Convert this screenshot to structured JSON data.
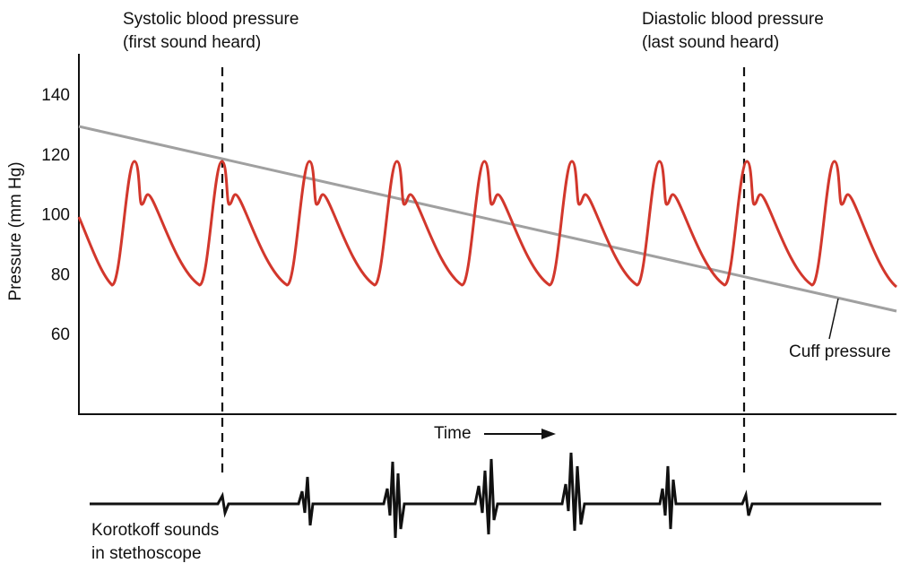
{
  "annotations": {
    "systolic": [
      "Systolic blood pressure",
      "(first sound heard)"
    ],
    "diastolic": [
      "Diastolic blood pressure",
      "(last sound heard)"
    ],
    "cuff": "Cuff pressure",
    "korotkoff": [
      "Korotkoff sounds",
      "in stethoscope"
    ]
  },
  "axes": {
    "y_label": "Pressure (mm Hg)",
    "x_label": "Time",
    "yticks": [
      60,
      80,
      100,
      120,
      140
    ]
  }
}
